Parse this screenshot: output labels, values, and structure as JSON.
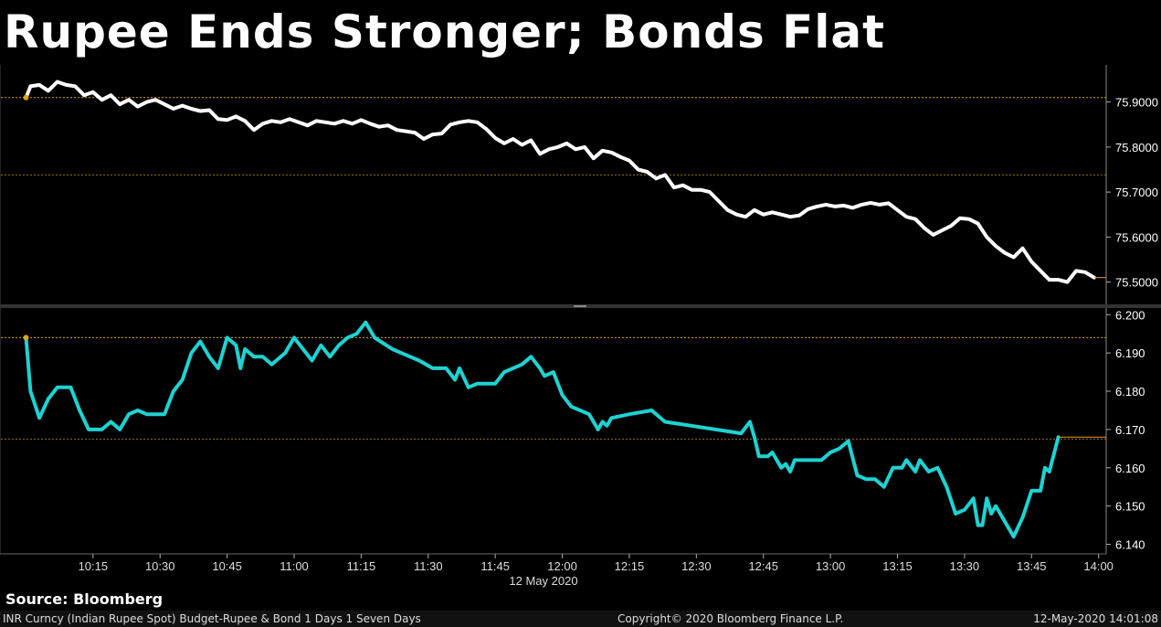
{
  "title": "Rupee Ends Stronger; Bonds Flat",
  "source": "Source: Bloomberg",
  "footer": {
    "left": "INR Curncy (Indian Rupee Spot) Budget-Rupee & Bond 1 Days 1 Seven Days",
    "center": "Copyright© 2020 Bloomberg Finance L.P.",
    "right": "12-May-2020 14:01:08"
  },
  "colors": {
    "rupee": "#ffffff",
    "bond": "#1ed2d2",
    "refline": "#e0a020",
    "grid": "#555555"
  },
  "chart_data": [
    {
      "type": "line",
      "series": [
        {
          "values": [
            [
              "10:00",
              75.91
            ],
            [
              "10:01",
              75.935
            ],
            [
              "10:03",
              75.938
            ],
            [
              "10:05",
              75.925
            ],
            [
              "10:07",
              75.945
            ],
            [
              "10:09",
              75.938
            ],
            [
              "10:11",
              75.935
            ],
            [
              "10:13",
              75.915
            ],
            [
              "10:15",
              75.922
            ],
            [
              "10:17",
              75.905
            ],
            [
              "10:19",
              75.915
            ],
            [
              "10:21",
              75.895
            ],
            [
              "10:23",
              75.905
            ],
            [
              "10:25",
              75.89
            ],
            [
              "10:27",
              75.9
            ],
            [
              "10:29",
              75.905
            ],
            [
              "10:31",
              75.895
            ],
            [
              "10:33",
              75.885
            ],
            [
              "10:35",
              75.892
            ],
            [
              "10:37",
              75.885
            ],
            [
              "10:39",
              75.88
            ],
            [
              "10:41",
              75.882
            ],
            [
              "10:43",
              75.862
            ],
            [
              "10:45",
              75.86
            ],
            [
              "10:47",
              75.868
            ],
            [
              "10:49",
              75.858
            ],
            [
              "10:51",
              75.838
            ],
            [
              "10:53",
              75.852
            ],
            [
              "10:55",
              75.858
            ],
            [
              "10:57",
              75.855
            ],
            [
              "10:59",
              75.862
            ],
            [
              "11:01",
              75.855
            ],
            [
              "11:03",
              75.848
            ],
            [
              "11:05",
              75.858
            ],
            [
              "11:07",
              75.855
            ],
            [
              "11:09",
              75.852
            ],
            [
              "11:11",
              75.858
            ],
            [
              "11:13",
              75.852
            ],
            [
              "11:15",
              75.86
            ],
            [
              "11:17",
              75.852
            ],
            [
              "11:19",
              75.845
            ],
            [
              "11:21",
              75.848
            ],
            [
              "11:23",
              75.838
            ],
            [
              "11:25",
              75.835
            ],
            [
              "11:27",
              75.832
            ],
            [
              "11:29",
              75.818
            ],
            [
              "11:31",
              75.828
            ],
            [
              "11:33",
              75.83
            ],
            [
              "11:35",
              75.85
            ],
            [
              "11:37",
              75.855
            ],
            [
              "11:39",
              75.858
            ],
            [
              "11:41",
              75.855
            ],
            [
              "11:43",
              75.84
            ],
            [
              "11:45",
              75.82
            ],
            [
              "11:47",
              75.808
            ],
            [
              "11:49",
              75.818
            ],
            [
              "11:51",
              75.805
            ],
            [
              "11:53",
              75.815
            ],
            [
              "11:55",
              75.785
            ],
            [
              "11:57",
              75.795
            ],
            [
              "11:59",
              75.8
            ],
            [
              "12:01",
              75.808
            ],
            [
              "12:03",
              75.795
            ],
            [
              "12:05",
              75.8
            ],
            [
              "12:07",
              75.775
            ],
            [
              "12:09",
              75.792
            ],
            [
              "12:11",
              75.788
            ],
            [
              "12:13",
              75.778
            ],
            [
              "12:15",
              75.77
            ],
            [
              "12:17",
              75.75
            ],
            [
              "12:19",
              75.745
            ],
            [
              "12:21",
              75.73
            ],
            [
              "12:23",
              75.738
            ],
            [
              "12:25",
              75.71
            ],
            [
              "12:27",
              75.715
            ],
            [
              "12:29",
              75.705
            ],
            [
              "12:31",
              75.705
            ],
            [
              "12:33",
              75.7
            ],
            [
              "12:35",
              75.68
            ],
            [
              "12:37",
              75.66
            ],
            [
              "12:39",
              75.65
            ],
            [
              "12:41",
              75.645
            ],
            [
              "12:43",
              75.66
            ],
            [
              "12:45",
              75.65
            ],
            [
              "12:47",
              75.655
            ],
            [
              "12:49",
              75.65
            ],
            [
              "12:51",
              75.645
            ],
            [
              "12:53",
              75.648
            ],
            [
              "12:55",
              75.662
            ],
            [
              "12:57",
              75.668
            ],
            [
              "12:59",
              75.672
            ],
            [
              "13:01",
              75.668
            ],
            [
              "13:03",
              75.67
            ],
            [
              "13:05",
              75.665
            ],
            [
              "13:07",
              75.672
            ],
            [
              "13:09",
              75.676
            ],
            [
              "13:11",
              75.672
            ],
            [
              "13:13",
              75.675
            ],
            [
              "13:15",
              75.66
            ],
            [
              "13:17",
              75.645
            ],
            [
              "13:19",
              75.64
            ],
            [
              "13:21",
              75.62
            ],
            [
              "13:23",
              75.605
            ],
            [
              "13:25",
              75.615
            ],
            [
              "13:27",
              75.625
            ],
            [
              "13:29",
              75.642
            ],
            [
              "13:31",
              75.64
            ],
            [
              "13:33",
              75.63
            ],
            [
              "13:35",
              75.6
            ],
            [
              "13:37",
              75.58
            ],
            [
              "13:39",
              75.565
            ],
            [
              "13:41",
              75.555
            ],
            [
              "13:43",
              75.575
            ],
            [
              "13:45",
              75.545
            ],
            [
              "13:47",
              75.525
            ],
            [
              "13:49",
              75.505
            ],
            [
              "13:51",
              75.505
            ],
            [
              "13:53",
              75.5
            ],
            [
              "13:55",
              75.525
            ],
            [
              "13:57",
              75.522
            ],
            [
              "13:59",
              75.51
            ]
          ]
        }
      ],
      "ylim": [
        75.4525,
        75.9825
      ],
      "yticks": [
        "75.9000",
        "75.8000",
        "75.7000",
        "75.6000",
        "75.5000"
      ],
      "reference_lines": [
        75.91,
        75.738
      ],
      "last_value": 75.51
    },
    {
      "type": "line",
      "series": [
        {
          "values": [
            [
              "10:00",
              6.194
            ],
            [
              "10:01",
              6.18
            ],
            [
              "10:03",
              6.173
            ],
            [
              "10:05",
              6.178
            ],
            [
              "10:07",
              6.181
            ],
            [
              "10:10",
              6.181
            ],
            [
              "10:12",
              6.175
            ],
            [
              "10:14",
              6.17
            ],
            [
              "10:17",
              6.17
            ],
            [
              "10:19",
              6.172
            ],
            [
              "10:21",
              6.17
            ],
            [
              "10:23",
              6.174
            ],
            [
              "10:25",
              6.175
            ],
            [
              "10:27",
              6.174
            ],
            [
              "10:31",
              6.174
            ],
            [
              "10:33",
              6.18
            ],
            [
              "10:35",
              6.183
            ],
            [
              "10:37",
              6.19
            ],
            [
              "10:39",
              6.193
            ],
            [
              "10:41",
              6.189
            ],
            [
              "10:43",
              6.186
            ],
            [
              "10:45",
              6.194
            ],
            [
              "10:47",
              6.192
            ],
            [
              "10:48",
              6.186
            ],
            [
              "10:49",
              6.191
            ],
            [
              "10:51",
              6.189
            ],
            [
              "10:53",
              6.189
            ],
            [
              "10:55",
              6.187
            ],
            [
              "10:56",
              6.188
            ],
            [
              "10:58",
              6.19
            ],
            [
              "11:00",
              6.194
            ],
            [
              "11:02",
              6.191
            ],
            [
              "11:04",
              6.188
            ],
            [
              "11:06",
              6.192
            ],
            [
              "11:08",
              6.189
            ],
            [
              "11:10",
              6.192
            ],
            [
              "11:12",
              6.194
            ],
            [
              "11:14",
              6.195
            ],
            [
              "11:16",
              6.198
            ],
            [
              "11:18",
              6.194
            ],
            [
              "11:22",
              6.191
            ],
            [
              "11:24",
              6.19
            ],
            [
              "11:28",
              6.188
            ],
            [
              "11:31",
              6.186
            ],
            [
              "11:34",
              6.186
            ],
            [
              "11:36",
              6.183
            ],
            [
              "11:37",
              6.186
            ],
            [
              "11:39",
              6.181
            ],
            [
              "11:41",
              6.182
            ],
            [
              "11:45",
              6.182
            ],
            [
              "11:47",
              6.185
            ],
            [
              "11:49",
              6.186
            ],
            [
              "11:51",
              6.187
            ],
            [
              "11:53",
              6.189
            ],
            [
              "11:55",
              6.186
            ],
            [
              "11:56",
              6.184
            ],
            [
              "11:58",
              6.185
            ],
            [
              "12:00",
              6.179
            ],
            [
              "12:02",
              6.176
            ],
            [
              "12:04",
              6.175
            ],
            [
              "12:06",
              6.174
            ],
            [
              "12:08",
              6.17
            ],
            [
              "12:09",
              6.172
            ],
            [
              "12:10",
              6.171
            ],
            [
              "12:11",
              6.173
            ],
            [
              "12:15",
              6.174
            ],
            [
              "12:20",
              6.175
            ],
            [
              "12:23",
              6.172
            ],
            [
              "12:40",
              6.169
            ],
            [
              "12:42",
              6.172
            ],
            [
              "12:43",
              6.168
            ],
            [
              "12:44",
              6.163
            ],
            [
              "12:46",
              6.163
            ],
            [
              "12:47",
              6.164
            ],
            [
              "12:49",
              6.16
            ],
            [
              "12:50",
              6.161
            ],
            [
              "12:51",
              6.159
            ],
            [
              "12:52",
              6.162
            ],
            [
              "12:58",
              6.162
            ],
            [
              "13:00",
              6.164
            ],
            [
              "13:02",
              6.165
            ],
            [
              "13:04",
              6.167
            ],
            [
              "13:06",
              6.158
            ],
            [
              "13:08",
              6.157
            ],
            [
              "13:10",
              6.157
            ],
            [
              "13:12",
              6.155
            ],
            [
              "13:14",
              6.16
            ],
            [
              "13:16",
              6.16
            ],
            [
              "13:17",
              6.162
            ],
            [
              "13:19",
              6.159
            ],
            [
              "13:20",
              6.162
            ],
            [
              "13:22",
              6.159
            ],
            [
              "13:24",
              6.16
            ],
            [
              "13:26",
              6.155
            ],
            [
              "13:28",
              6.148
            ],
            [
              "13:30",
              6.149
            ],
            [
              "13:32",
              6.152
            ],
            [
              "13:33",
              6.145
            ],
            [
              "13:34",
              6.145
            ],
            [
              "13:35",
              6.152
            ],
            [
              "13:36",
              6.148
            ],
            [
              "13:37",
              6.15
            ],
            [
              "13:39",
              6.146
            ],
            [
              "13:41",
              6.142
            ],
            [
              "13:43",
              6.147
            ],
            [
              "13:45",
              6.154
            ],
            [
              "13:47",
              6.154
            ],
            [
              "13:48",
              6.16
            ],
            [
              "13:49",
              6.159
            ],
            [
              "13:51",
              6.168
            ]
          ]
        }
      ],
      "ylim": [
        6.1375,
        6.2015
      ],
      "yticks": [
        "6.200",
        "6.190",
        "6.180",
        "6.170",
        "6.160",
        "6.150",
        "6.140"
      ],
      "reference_lines": [
        6.194,
        6.1675
      ],
      "last_value": 6.168
    }
  ],
  "x_axis": {
    "ticks": [
      "10:15",
      "10:30",
      "10:45",
      "11:00",
      "11:15",
      "11:30",
      "11:45",
      "12:00",
      "12:15",
      "12:30",
      "12:45",
      "13:00",
      "13:15",
      "13:30",
      "13:45",
      "14:00"
    ],
    "date_label": "12 May 2020"
  }
}
